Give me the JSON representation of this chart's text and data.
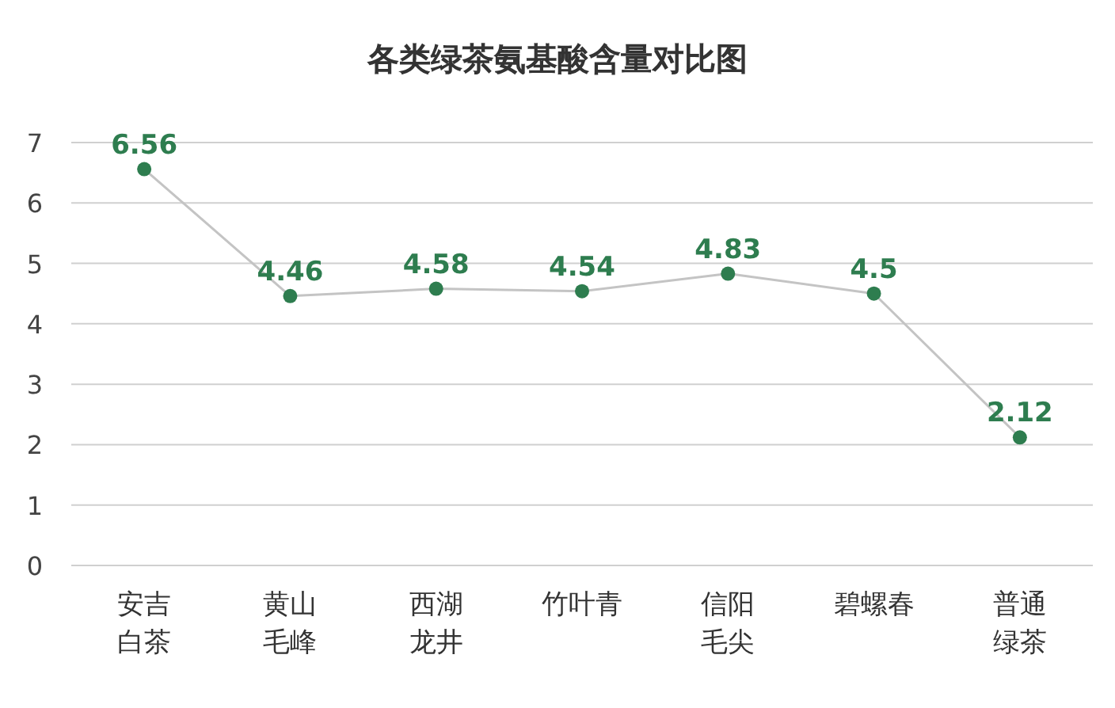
{
  "chart_data": {
    "type": "line",
    "title": "各类绿茶氨基酸含量对比图",
    "categories": [
      "安吉白茶",
      "黄山毛峰",
      "西湖龙井",
      "竹叶青",
      "信阳毛尖",
      "碧螺春",
      "普通绿茶"
    ],
    "series": [
      {
        "color": "#2e7d4f",
        "values": [
          6.56,
          4.46,
          4.58,
          4.54,
          4.83,
          4.5,
          2.12
        ]
      }
    ],
    "ylim": [
      0,
      7
    ],
    "yticks": [
      0,
      1,
      2,
      3,
      4,
      5,
      6,
      7
    ],
    "grid": "y",
    "marker": "circle",
    "line_style": "solid",
    "data_labels": true
  }
}
